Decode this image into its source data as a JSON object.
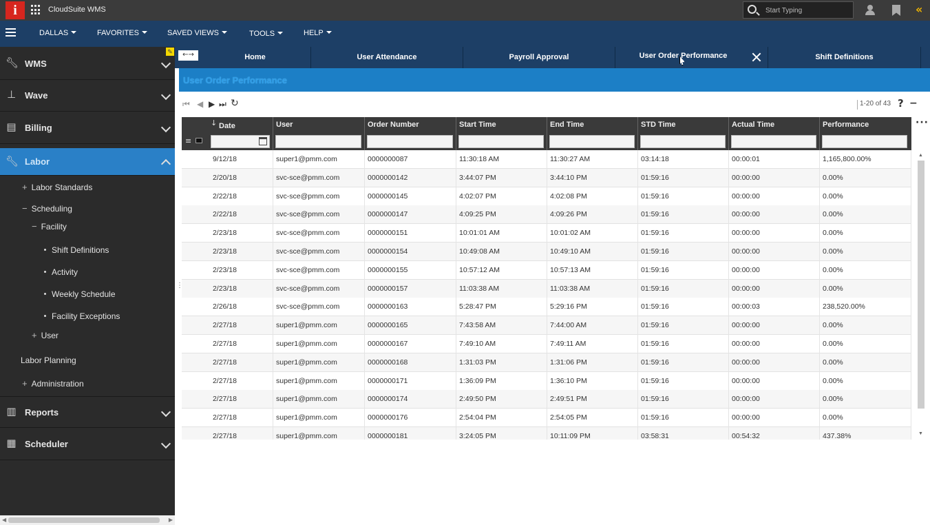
{
  "app": {
    "logo": "i",
    "title": "CloudSuite WMS"
  },
  "search": {
    "placeholder": "Start Typing"
  },
  "menu": [
    {
      "label": "DALLAS"
    },
    {
      "label": "FAVORITES"
    },
    {
      "label": "SAVED VIEWS"
    },
    {
      "label": "TOOLS"
    },
    {
      "label": "HELP"
    }
  ],
  "sidebar": {
    "sections": [
      {
        "label": "WMS",
        "icon": "wrench-icon"
      },
      {
        "label": "Wave",
        "icon": "hierarchy-icon"
      },
      {
        "label": "Billing",
        "icon": "invoice-icon"
      },
      {
        "label": "Labor",
        "icon": "wrench-icon"
      },
      {
        "label": "Reports",
        "icon": "bar-chart-icon"
      },
      {
        "label": "Scheduler",
        "icon": "calendar-icon"
      }
    ],
    "tree": [
      {
        "label": "Labor Standards",
        "prefix": "+"
      },
      {
        "label": "Scheduling",
        "prefix": "−"
      },
      {
        "label": "Facility",
        "prefix": "−"
      },
      {
        "label": "Shift Definitions",
        "prefix": "•"
      },
      {
        "label": "Activity",
        "prefix": "•"
      },
      {
        "label": "Weekly Schedule",
        "prefix": "•"
      },
      {
        "label": "Facility Exceptions",
        "prefix": "•"
      },
      {
        "label": "User",
        "prefix": "+"
      },
      {
        "label": "Labor Planning",
        "prefix": ""
      },
      {
        "label": "Administration",
        "prefix": "+"
      }
    ]
  },
  "tabs": [
    {
      "label": "Home"
    },
    {
      "label": "User Attendance"
    },
    {
      "label": "Payroll Approval"
    },
    {
      "label": "User Order Performance"
    },
    {
      "label": "Shift Definitions"
    }
  ],
  "page": {
    "title": "User Order Performance"
  },
  "pager": {
    "text": "1-20 of 43",
    "help": "?"
  },
  "table": {
    "columns": [
      "Date",
      "User",
      "Order Number",
      "Start Time",
      "End Time",
      "STD Time",
      "Actual Time",
      "Performance"
    ],
    "rows": [
      [
        "9/12/18",
        "super1@pmm.com",
        "0000000087",
        "11:30:18 AM",
        "11:30:27 AM",
        "03:14:18",
        "00:00:01",
        "1,165,800.00%"
      ],
      [
        "2/20/18",
        "svc-sce@pmm.com",
        "0000000142",
        "3:44:07 PM",
        "3:44:10 PM",
        "01:59:16",
        "00:00:00",
        "0.00%"
      ],
      [
        "2/22/18",
        "svc-sce@pmm.com",
        "0000000145",
        "4:02:07 PM",
        "4:02:08 PM",
        "01:59:16",
        "00:00:00",
        "0.00%"
      ],
      [
        "2/22/18",
        "svc-sce@pmm.com",
        "0000000147",
        "4:09:25 PM",
        "4:09:26 PM",
        "01:59:16",
        "00:00:00",
        "0.00%"
      ],
      [
        "2/23/18",
        "svc-sce@pmm.com",
        "0000000151",
        "10:01:01 AM",
        "10:01:02 AM",
        "01:59:16",
        "00:00:00",
        "0.00%"
      ],
      [
        "2/23/18",
        "svc-sce@pmm.com",
        "0000000154",
        "10:49:08 AM",
        "10:49:10 AM",
        "01:59:16",
        "00:00:00",
        "0.00%"
      ],
      [
        "2/23/18",
        "svc-sce@pmm.com",
        "0000000155",
        "10:57:12 AM",
        "10:57:13 AM",
        "01:59:16",
        "00:00:00",
        "0.00%"
      ],
      [
        "2/23/18",
        "svc-sce@pmm.com",
        "0000000157",
        "11:03:38 AM",
        "11:03:38 AM",
        "01:59:16",
        "00:00:00",
        "0.00%"
      ],
      [
        "2/26/18",
        "svc-sce@pmm.com",
        "0000000163",
        "5:28:47 PM",
        "5:29:16 PM",
        "01:59:16",
        "00:00:03",
        "238,520.00%"
      ],
      [
        "2/27/18",
        "super1@pmm.com",
        "0000000165",
        "7:43:58 AM",
        "7:44:00 AM",
        "01:59:16",
        "00:00:00",
        "0.00%"
      ],
      [
        "2/27/18",
        "super1@pmm.com",
        "0000000167",
        "7:49:10 AM",
        "7:49:11 AM",
        "01:59:16",
        "00:00:00",
        "0.00%"
      ],
      [
        "2/27/18",
        "super1@pmm.com",
        "0000000168",
        "1:31:03 PM",
        "1:31:06 PM",
        "01:59:16",
        "00:00:00",
        "0.00%"
      ],
      [
        "2/27/18",
        "super1@pmm.com",
        "0000000171",
        "1:36:09 PM",
        "1:36:10 PM",
        "01:59:16",
        "00:00:00",
        "0.00%"
      ],
      [
        "2/27/18",
        "super1@pmm.com",
        "0000000174",
        "2:49:50 PM",
        "2:49:51 PM",
        "01:59:16",
        "00:00:00",
        "0.00%"
      ],
      [
        "2/27/18",
        "super1@pmm.com",
        "0000000176",
        "2:54:04 PM",
        "2:54:05 PM",
        "01:59:16",
        "00:00:00",
        "0.00%"
      ],
      [
        "2/27/18",
        "super1@pmm.com",
        "0000000181",
        "3:24:05 PM",
        "10:11:09 PM",
        "03:58:31",
        "00:54:32",
        "437.38%"
      ]
    ]
  },
  "colors": {
    "topbar": "#3b3b3b",
    "menubar": "#1d3f66",
    "sidebar": "#2b2b2b",
    "active": "#2a80c7",
    "accent": "#1c7fc6"
  }
}
